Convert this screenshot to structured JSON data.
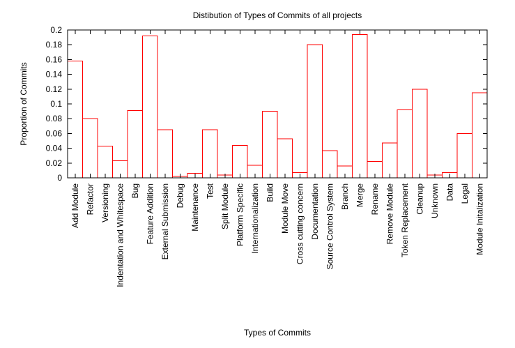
{
  "chart_data": {
    "type": "bar",
    "title": "Distibution of Types of Commits of all projects",
    "xlabel": "Types of Commits",
    "ylabel": "Proportion of Commits",
    "ylim": [
      0,
      0.2
    ],
    "yticks": [
      "0",
      "0.02",
      "0.04",
      "0.06",
      "0.08",
      "0.1",
      "0.12",
      "0.14",
      "0.16",
      "0.18",
      "0.2"
    ],
    "grid": false,
    "bar_color": "#ff0000",
    "categories": [
      "Add Module",
      "Refactor",
      "Versioning",
      "Indentation and Whitespace",
      "Bug",
      "Feature Addition",
      "External Submission",
      "Debug",
      "Maintenance",
      "Test",
      "Split Module",
      "Platform Specific",
      "Internationalization",
      "Build",
      "Module Move",
      "Cross cutting concern",
      "Documentation",
      "Source Control System",
      "Branch",
      "Merge",
      "Rename",
      "Remove Module",
      "Token Replacement",
      "Cleanup",
      "Unknown",
      "Data",
      "Legal",
      "Module Initalization"
    ],
    "values": [
      0.158,
      0.08,
      0.043,
      0.023,
      0.091,
      0.192,
      0.065,
      0.002,
      0.006,
      0.065,
      0.004,
      0.044,
      0.017,
      0.09,
      0.053,
      0.007,
      0.18,
      0.037,
      0.016,
      0.194,
      0.022,
      0.047,
      0.092,
      0.12,
      0.004,
      0.007,
      0.06,
      0.115
    ]
  }
}
